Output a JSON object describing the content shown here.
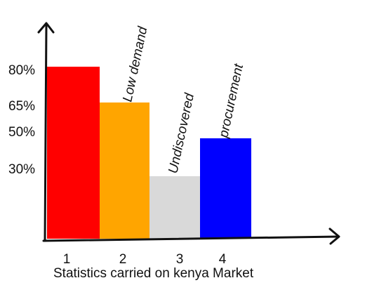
{
  "chart_data": {
    "type": "bar",
    "xlabel": "Statistics carried on kenya Market",
    "ylabel": "",
    "categories": [
      "1",
      "2",
      "3",
      "4"
    ],
    "values": [
      80,
      65,
      30,
      50
    ],
    "bar_labels": [
      "",
      "Low demand",
      "Undiscovered",
      "procurement"
    ],
    "yticks": [
      "80%",
      "65%",
      "50%",
      "30%"
    ],
    "ytick_values": [
      80,
      65,
      50,
      30
    ],
    "ylim": [
      0,
      100
    ],
    "grid": false,
    "colors": [
      "#ff0000",
      "#ffa500",
      "#d9d9d9",
      "#0000ff"
    ]
  }
}
